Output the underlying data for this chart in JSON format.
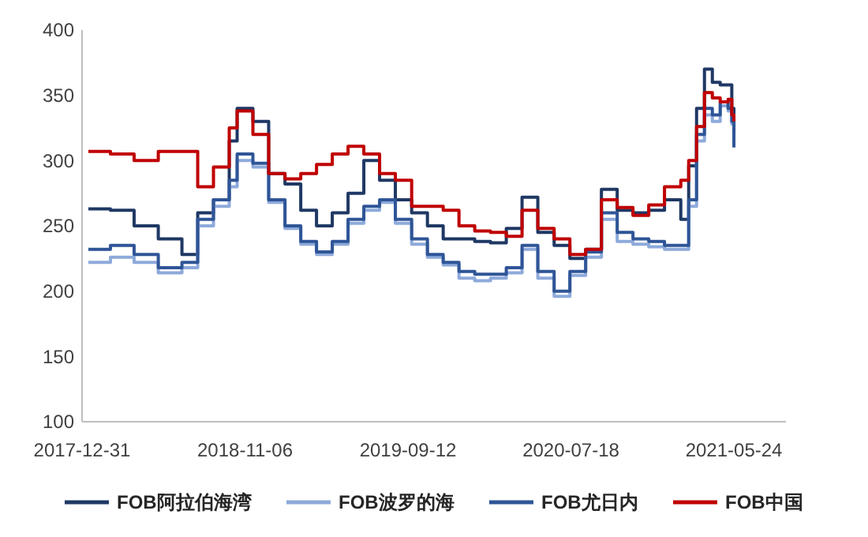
{
  "chart_data": {
    "type": "step",
    "x": [
      "2018-01-12",
      "2018-02-23",
      "2018-04-09",
      "2018-05-25",
      "2018-07-09",
      "2018-08-08",
      "2018-09-07",
      "2018-10-07",
      "2018-10-22",
      "2018-11-21",
      "2018-12-21",
      "2019-01-21",
      "2019-02-20",
      "2019-03-22",
      "2019-04-21",
      "2019-05-21",
      "2019-06-20",
      "2019-07-20",
      "2019-08-19",
      "2019-09-19",
      "2019-10-19",
      "2019-11-18",
      "2019-12-18",
      "2020-01-17",
      "2020-02-16",
      "2020-03-17",
      "2020-04-16",
      "2020-05-16",
      "2020-06-16",
      "2020-07-16",
      "2020-08-15",
      "2020-09-14",
      "2020-10-14",
      "2020-11-13",
      "2020-12-13",
      "2021-01-12",
      "2021-02-12",
      "2021-02-27",
      "2021-03-14",
      "2021-03-29",
      "2021-04-13",
      "2021-04-28",
      "2021-05-13",
      "2021-05-20",
      "2021-05-24"
    ],
    "series": [
      {
        "name": "FOB阿拉伯海湾",
        "color": "#1f3864",
        "values": [
          263,
          262,
          250,
          240,
          228,
          260,
          270,
          315,
          340,
          330,
          290,
          282,
          262,
          250,
          260,
          275,
          300,
          285,
          270,
          260,
          250,
          240,
          240,
          238,
          237,
          248,
          272,
          245,
          235,
          225,
          232,
          278,
          262,
          260,
          262,
          270,
          255,
          296,
          340,
          370,
          360,
          358,
          358,
          340,
          320
        ]
      },
      {
        "name": "FOB波罗的海",
        "color": "#8eaadb",
        "values": [
          222,
          226,
          222,
          214,
          218,
          250,
          265,
          280,
          300,
          295,
          268,
          248,
          236,
          228,
          236,
          252,
          262,
          268,
          252,
          236,
          226,
          220,
          210,
          208,
          210,
          214,
          232,
          210,
          196,
          212,
          226,
          255,
          238,
          236,
          234,
          232,
          232,
          265,
          315,
          335,
          330,
          342,
          338,
          328,
          325
        ]
      },
      {
        "name": "FOB尤日内",
        "color": "#2f5597",
        "values": [
          232,
          235,
          228,
          218,
          222,
          255,
          270,
          285,
          305,
          298,
          270,
          250,
          238,
          230,
          238,
          255,
          265,
          270,
          255,
          240,
          228,
          222,
          215,
          213,
          213,
          218,
          235,
          215,
          200,
          215,
          230,
          260,
          245,
          240,
          238,
          235,
          235,
          270,
          320,
          340,
          335,
          345,
          340,
          330,
          310
        ]
      },
      {
        "name": "FOB中国",
        "color": "#c00000",
        "values": [
          307,
          305,
          300,
          307,
          307,
          280,
          295,
          325,
          338,
          320,
          290,
          286,
          290,
          297,
          305,
          311,
          305,
          290,
          285,
          265,
          265,
          262,
          250,
          246,
          245,
          242,
          262,
          248,
          240,
          228,
          232,
          270,
          264,
          258,
          266,
          280,
          285,
          300,
          326,
          352,
          348,
          345,
          347,
          335,
          330
        ]
      }
    ],
    "xlim": [
      "2017-12-31",
      "2021-08-31"
    ],
    "xticks": [
      {
        "value": "2017-12-31",
        "label": "2017-12-31"
      },
      {
        "value": "2018-11-06",
        "label": "2018-11-06"
      },
      {
        "value": "2019-09-12",
        "label": "2019-09-12"
      },
      {
        "value": "2020-07-18",
        "label": "2020-07-18"
      },
      {
        "value": "2021-05-24",
        "label": "2021-05-24"
      }
    ],
    "ylim": [
      100,
      400
    ],
    "yticks": [
      100,
      150,
      200,
      250,
      300,
      350,
      400
    ],
    "grid": false,
    "legend": "bottom",
    "line_style": "solid"
  }
}
